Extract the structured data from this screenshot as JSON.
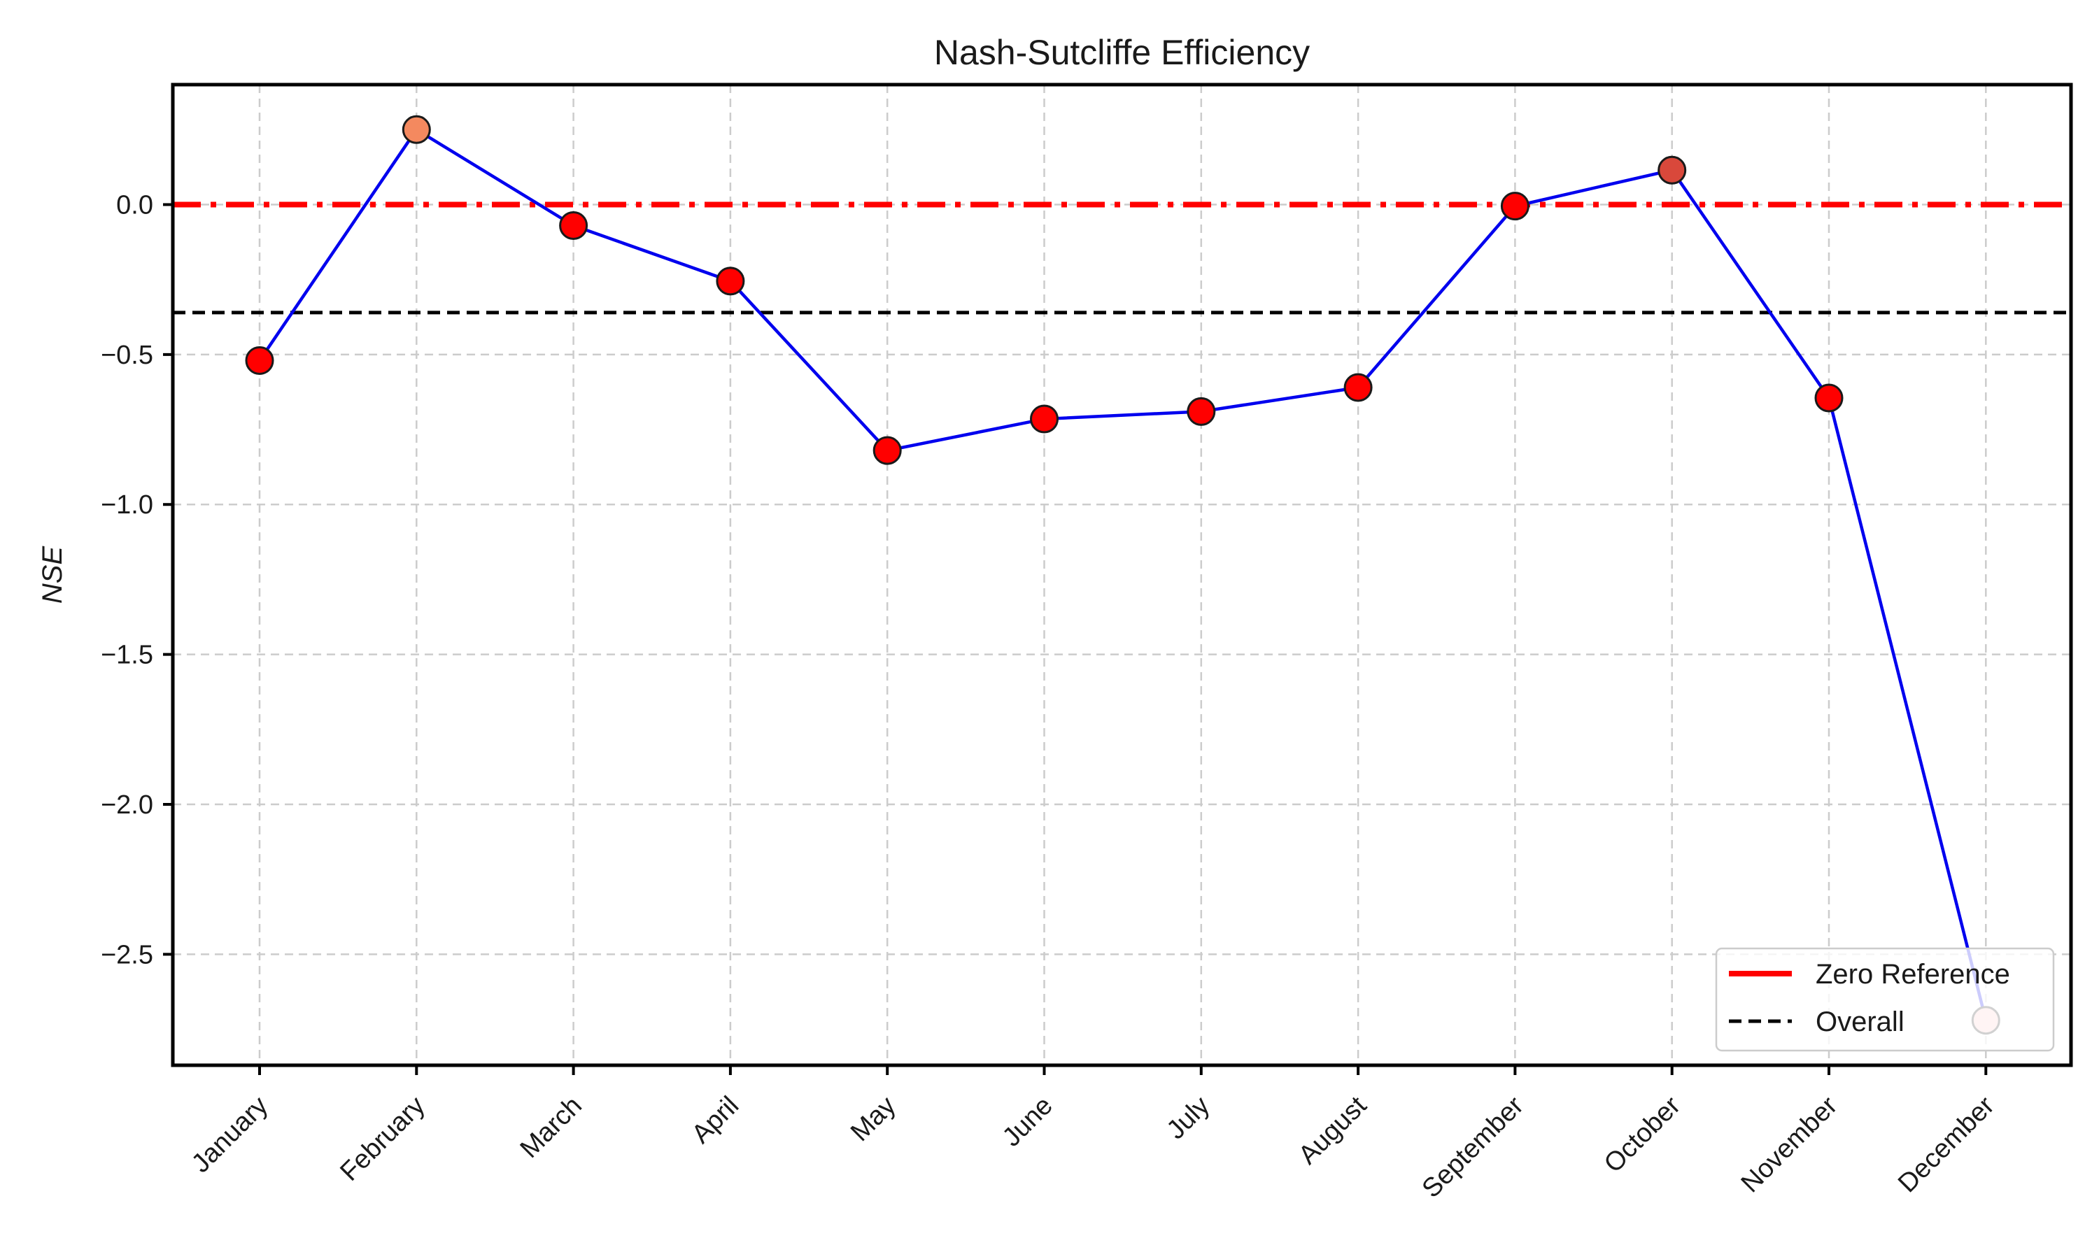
{
  "chart_data": {
    "type": "line",
    "title": "Nash-Sutcliffe Efficiency",
    "xlabel": "",
    "ylabel": "NSE",
    "categories": [
      "January",
      "February",
      "March",
      "April",
      "May",
      "June",
      "July",
      "August",
      "September",
      "October",
      "November",
      "December"
    ],
    "series": [
      {
        "values": [
          -0.52,
          0.25,
          -0.07,
          -0.255,
          -0.82,
          -0.715,
          -0.69,
          -0.61,
          -0.005,
          0.115,
          -0.645,
          -2.72
        ],
        "line_color": "#0000ee",
        "marker_colors": [
          "#ff0000",
          "#f4895f",
          "#ff0000",
          "#ff0000",
          "#ff0000",
          "#ff0000",
          "#ff0000",
          "#ff0000",
          "#ff0000",
          "#d9483b",
          "#ff0000",
          "#ffc8c8"
        ]
      }
    ],
    "reference_lines": [
      {
        "name": "Zero Reference",
        "value": 0.0,
        "color": "#ff0000",
        "style": "dashdot"
      },
      {
        "name": "Overall",
        "value": -0.36,
        "color": "#000000",
        "style": "dashed"
      }
    ],
    "yticks": [
      0.0,
      -0.5,
      -1.0,
      -1.5,
      -2.0,
      -2.5
    ],
    "ytick_labels": [
      "0.0",
      "−0.5",
      "−1.0",
      "−1.5",
      "−2.0",
      "−2.5"
    ],
    "ylim": [
      -2.87,
      0.4
    ],
    "grid": true,
    "legend_position": "lower-right"
  }
}
